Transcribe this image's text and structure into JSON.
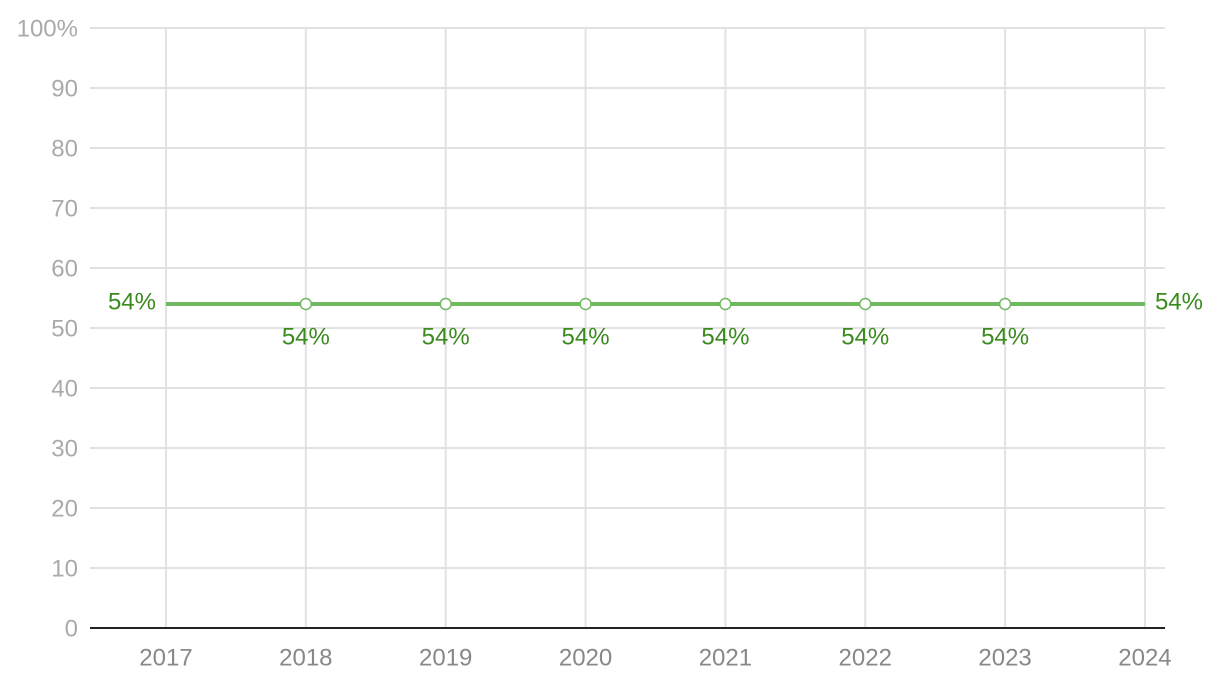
{
  "chart_data": {
    "type": "line",
    "categories": [
      "2017",
      "2018",
      "2019",
      "2020",
      "2021",
      "2022",
      "2023",
      "2024"
    ],
    "series": [
      {
        "color": "#70b860",
        "label_color": "#3a8a1e",
        "values": [
          54,
          54,
          54,
          54,
          54,
          54,
          54,
          54
        ],
        "value_labels": [
          "54%",
          "54%",
          "54%",
          "54%",
          "54%",
          "54%",
          "54%",
          "54%"
        ]
      }
    ],
    "ylim": [
      0,
      100
    ],
    "yticks": [
      0,
      10,
      20,
      30,
      40,
      50,
      60,
      70,
      80,
      90,
      {
        "value": 100,
        "label": "100%"
      }
    ],
    "grid": true
  }
}
